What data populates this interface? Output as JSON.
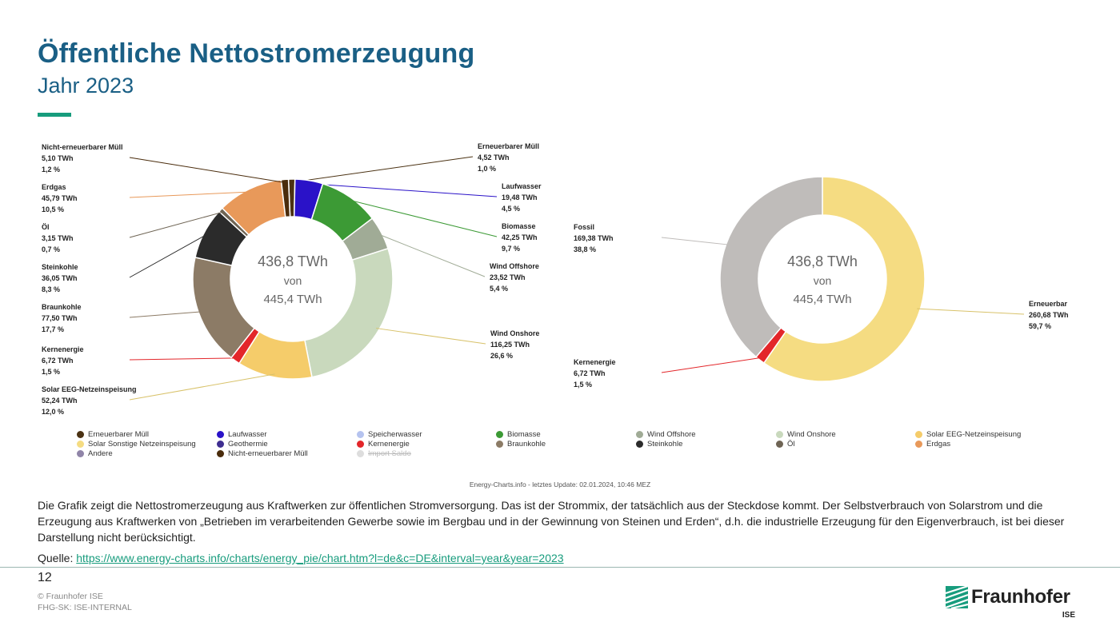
{
  "header": {
    "title": "Öffentliche Nettostromerzeugung",
    "subtitle": "Jahr 2023"
  },
  "chart_data": [
    {
      "type": "donut",
      "center_lines": [
        "436,8 TWh",
        "von",
        "445,4 TWh"
      ],
      "unit": "TWh",
      "slices": [
        {
          "name": "Erneuerbarer Müll",
          "value": 4.52,
          "value_label": "4,52 TWh",
          "percent_label": "1,0 %",
          "color": "#4b3213"
        },
        {
          "name": "Laufwasser",
          "value": 19.48,
          "value_label": "19,48 TWh",
          "percent_label": "4,5 %",
          "color": "#2a12c8"
        },
        {
          "name": "Biomasse",
          "value": 42.25,
          "value_label": "42,25 TWh",
          "percent_label": "9,7 %",
          "color": "#3c9a35"
        },
        {
          "name": "Wind Offshore",
          "value": 23.52,
          "value_label": "23,52 TWh",
          "percent_label": "5,4 %",
          "color": "#a0ab96"
        },
        {
          "name": "Wind Onshore",
          "value": 116.25,
          "value_label": "116,25 TWh",
          "percent_label": "26,6 %",
          "color": "#c9d9bd"
        },
        {
          "name": "Solar EEG-Netzeinspeisung",
          "value": 52.24,
          "value_label": "52,24 TWh",
          "percent_label": "12,0 %",
          "color": "#f5cc6a"
        },
        {
          "name": "Kernenergie",
          "value": 6.72,
          "value_label": "6,72 TWh",
          "percent_label": "1,5 %",
          "color": "#e3262a"
        },
        {
          "name": "Braunkohle",
          "value": 77.5,
          "value_label": "77,50 TWh",
          "percent_label": "17,7 %",
          "color": "#8c7b66"
        },
        {
          "name": "Steinkohle",
          "value": 36.05,
          "value_label": "36,05 TWh",
          "percent_label": "8,3 %",
          "color": "#2b2b2b"
        },
        {
          "name": "Öl",
          "value": 3.15,
          "value_label": "3,15 TWh",
          "percent_label": "0,7 %",
          "color": "#6e6454"
        },
        {
          "name": "Erdgas",
          "value": 45.79,
          "value_label": "45,79 TWh",
          "percent_label": "10,5 %",
          "color": "#e8995a"
        },
        {
          "name": "Nicht-erneuerbarer Müll",
          "value": 5.1,
          "value_label": "5,10 TWh",
          "percent_label": "1,2 %",
          "color": "#4a2c0c"
        }
      ]
    },
    {
      "type": "donut",
      "center_lines": [
        "436,8 TWh",
        "von",
        "445,4 TWh"
      ],
      "unit": "TWh",
      "slices": [
        {
          "name": "Erneuerbar",
          "value": 260.68,
          "value_label": "260,68 TWh",
          "percent_label": "59,7 %",
          "color": "#f5dc82"
        },
        {
          "name": "Kernenergie",
          "value": 6.72,
          "value_label": "6,72 TWh",
          "percent_label": "1,5 %",
          "color": "#e3262a"
        },
        {
          "name": "Fossil",
          "value": 169.38,
          "value_label": "169,38 TWh",
          "percent_label": "38,8 %",
          "color": "#bfbcba"
        }
      ]
    }
  ],
  "legend": [
    {
      "label": "Erneuerbarer Müll",
      "color": "#4b3213",
      "struck": false
    },
    {
      "label": "Laufwasser",
      "color": "#2a12c8",
      "struck": false
    },
    {
      "label": "Speicherwasser",
      "color": "#b5c3ef",
      "struck": false
    },
    {
      "label": "Biomasse",
      "color": "#3c9a35",
      "struck": false
    },
    {
      "label": "Wind Offshore",
      "color": "#a0ab96",
      "struck": false
    },
    {
      "label": "Wind Onshore",
      "color": "#c9d9bd",
      "struck": false
    },
    {
      "label": "Solar EEG-Netzeinspeisung",
      "color": "#f5cc6a",
      "struck": false
    },
    {
      "label": "Solar Sonstige Netzeinspeisung",
      "color": "#f5dc82",
      "struck": false
    },
    {
      "label": "Geothermie",
      "color": "#3f2e91",
      "struck": false
    },
    {
      "label": "Kernenergie",
      "color": "#e3262a",
      "struck": false
    },
    {
      "label": "Braunkohle",
      "color": "#8c7b66",
      "struck": false
    },
    {
      "label": "Steinkohle",
      "color": "#2b2b2b",
      "struck": false
    },
    {
      "label": "Öl",
      "color": "#6e6454",
      "struck": false
    },
    {
      "label": "Erdgas",
      "color": "#e8995a",
      "struck": false
    },
    {
      "label": "Andere",
      "color": "#9085a8",
      "struck": false
    },
    {
      "label": "Nicht-erneuerbarer Müll",
      "color": "#4a2c0c",
      "struck": false
    },
    {
      "label": "Import Saldo",
      "color": "#dddddd",
      "struck": true
    }
  ],
  "footer": {
    "source_note": "Energy-Charts.info - letztes Update: 02.01.2024, 10:46 MEZ",
    "description": "Die Grafik zeigt die Nettostromerzeugung aus Kraftwerken zur öffentlichen Stromversorgung. Das ist der Strommix, der tatsächlich aus der Steckdose kommt. Der Selbstverbrauch von Solarstrom und die Erzeugung aus Kraftwerken von „Betrieben im verarbeitenden Gewerbe sowie im Bergbau und in der Gewinnung von Steinen und Erden“, d.h. die industrielle Erzeugung für den Eigenverbrauch, ist bei dieser Darstellung nicht berücksichtigt.",
    "quelle_label": "Quelle:",
    "quelle_link": "https://www.energy-charts.info/charts/energy_pie/chart.htm?l=de&c=DE&interval=year&year=2023",
    "page_number": "12",
    "copyright": "© Fraunhofer ISE",
    "classification": "FHG-SK: ISE-INTERNAL",
    "logo_name": "Fraunhofer",
    "logo_sub": "ISE"
  }
}
